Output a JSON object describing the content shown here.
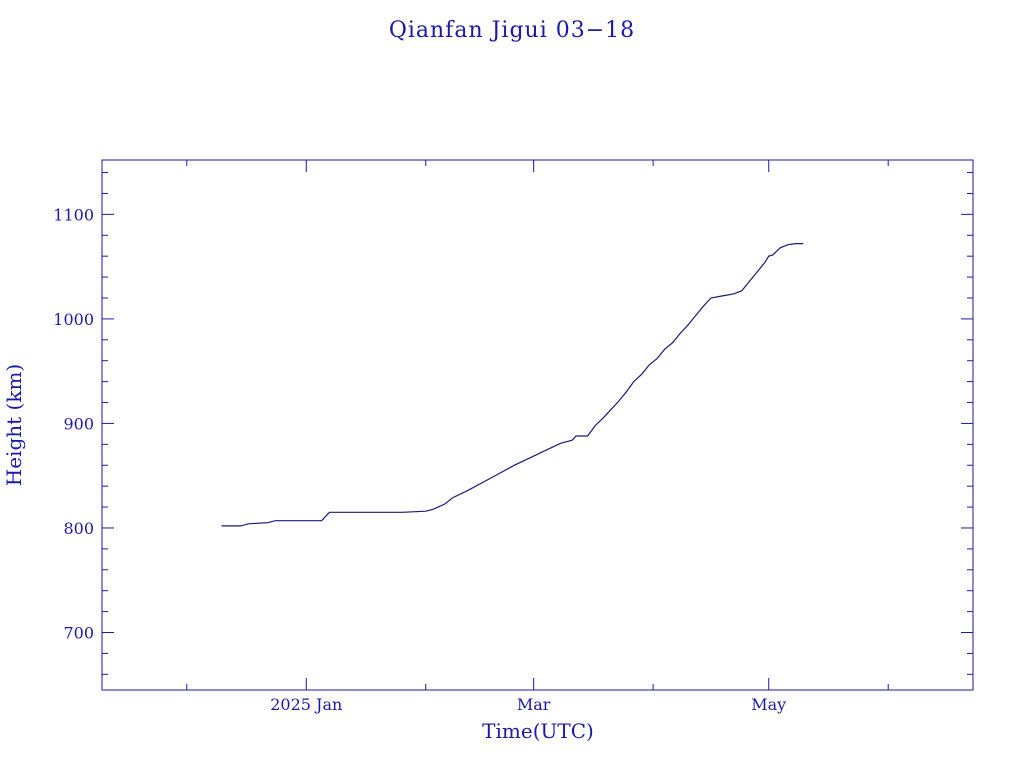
{
  "chart_data": {
    "type": "line",
    "title": "Qianfan Jigui 03−18",
    "xlabel": "Time(UTC)",
    "ylabel": "Height (km)",
    "ylim": [
      645,
      1152
    ],
    "xlim": [
      "2024-11-09",
      "2025-06-23"
    ],
    "x_ticks": [
      {
        "date": "2025-01-01",
        "label": "2025 Jan"
      },
      {
        "date": "2025-03-01",
        "label": "Mar"
      },
      {
        "date": "2025-05-01",
        "label": "May"
      }
    ],
    "x_minor_ticks": [
      "2024-12-01",
      "2025-02-01",
      "2025-04-01",
      "2025-06-01"
    ],
    "y_ticks": [
      700,
      800,
      900,
      1000,
      1100
    ],
    "y_minor_step": 20,
    "grid": false,
    "colors": {
      "axis": "#1a1aa6",
      "line": "#1a1a7a",
      "text": "#1a1aa6"
    },
    "series": [
      {
        "points": [
          [
            "2024-12-10",
            802
          ],
          [
            "2024-12-15",
            802
          ],
          [
            "2024-12-17",
            804
          ],
          [
            "2024-12-22",
            805
          ],
          [
            "2024-12-24",
            807
          ],
          [
            "2025-01-05",
            807
          ],
          [
            "2025-01-07",
            815
          ],
          [
            "2025-01-17",
            815
          ],
          [
            "2025-01-26",
            815
          ],
          [
            "2025-02-01",
            816
          ],
          [
            "2025-02-03",
            818
          ],
          [
            "2025-02-06",
            823
          ],
          [
            "2025-02-08",
            829
          ],
          [
            "2025-02-12",
            836
          ],
          [
            "2025-02-16",
            844
          ],
          [
            "2025-02-20",
            852
          ],
          [
            "2025-02-24",
            860
          ],
          [
            "2025-02-28",
            867
          ],
          [
            "2025-03-04",
            874
          ],
          [
            "2025-03-08",
            881
          ],
          [
            "2025-03-11",
            884
          ],
          [
            "2025-03-12",
            888
          ],
          [
            "2025-03-15",
            888
          ],
          [
            "2025-03-17",
            898
          ],
          [
            "2025-03-19",
            905
          ],
          [
            "2025-03-21",
            913
          ],
          [
            "2025-03-23",
            921
          ],
          [
            "2025-03-25",
            930
          ],
          [
            "2025-03-27",
            940
          ],
          [
            "2025-03-29",
            947
          ],
          [
            "2025-03-31",
            956
          ],
          [
            "2025-04-02",
            962
          ],
          [
            "2025-04-04",
            971
          ],
          [
            "2025-04-06",
            977
          ],
          [
            "2025-04-08",
            986
          ],
          [
            "2025-04-10",
            994
          ],
          [
            "2025-04-12",
            1003
          ],
          [
            "2025-04-14",
            1012
          ],
          [
            "2025-04-16",
            1020
          ],
          [
            "2025-04-19",
            1022
          ],
          [
            "2025-04-22",
            1024
          ],
          [
            "2025-04-24",
            1027
          ],
          [
            "2025-04-26",
            1036
          ],
          [
            "2025-04-28",
            1045
          ],
          [
            "2025-04-30",
            1054
          ],
          [
            "2025-05-01",
            1060
          ],
          [
            "2025-05-02",
            1061
          ],
          [
            "2025-05-04",
            1068
          ],
          [
            "2025-05-06",
            1071
          ],
          [
            "2025-05-08",
            1072
          ],
          [
            "2025-05-10",
            1072
          ]
        ]
      }
    ]
  }
}
